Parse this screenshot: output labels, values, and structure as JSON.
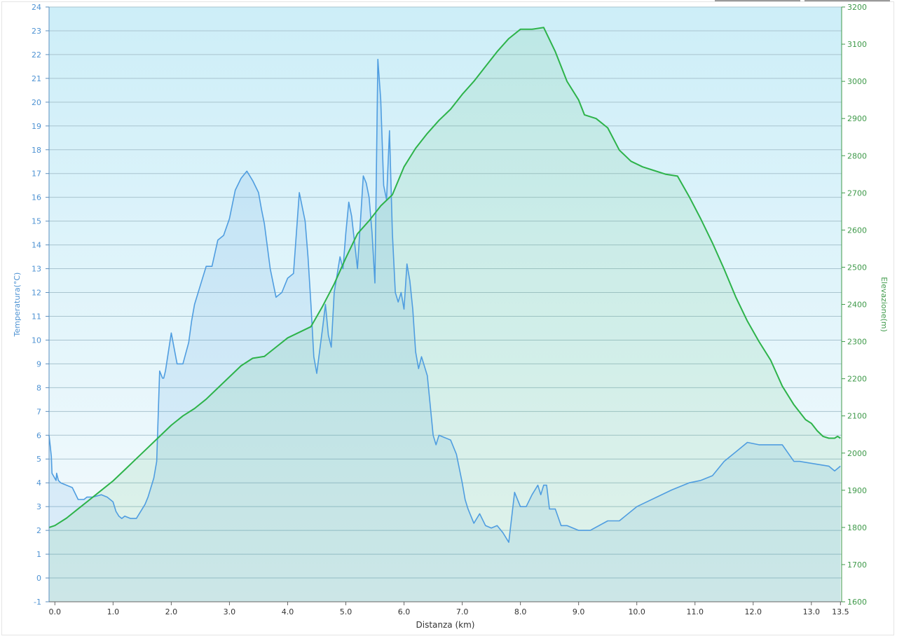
{
  "chart_data": {
    "type": "area",
    "xlabel": "Distanza  (km)",
    "x_ticks": [
      "0.0",
      "1.0",
      "2.0",
      "3.0",
      "4.0",
      "5.0",
      "6.0",
      "7.0",
      "8.0",
      "9.0",
      "10.0",
      "11.0",
      "12.0",
      "13.0",
      "13.5"
    ],
    "x_tick_values": [
      0,
      1,
      2,
      3,
      4,
      5,
      6,
      7,
      8,
      9,
      10,
      11,
      12,
      13,
      13.5
    ],
    "xlim": [
      -0.1,
      13.52
    ],
    "y_left": {
      "label": "Temperatura(°C)",
      "ylim": [
        -1,
        24
      ],
      "ticks": [
        "-1",
        "0",
        "1",
        "2",
        "3",
        "4",
        "5",
        "6",
        "7",
        "8",
        "9",
        "10",
        "11",
        "12",
        "13",
        "14",
        "15",
        "16",
        "17",
        "18",
        "19",
        "20",
        "21",
        "22",
        "23",
        "24"
      ]
    },
    "y_right": {
      "label": "Elevazione(m)",
      "ylim": [
        1600,
        3200
      ],
      "ticks": [
        "1600",
        "1700",
        "1800",
        "1900",
        "2000",
        "2100",
        "2200",
        "2300",
        "2400",
        "2500",
        "2600",
        "2700",
        "2800",
        "2900",
        "3000",
        "3100",
        "3200"
      ]
    },
    "grid": true,
    "colors": {
      "temperature": "#4f9de0",
      "elevation": "#2db34a",
      "background_top": "#cdeef8",
      "background_bottom": "#f6fbfd",
      "grid": "#a9c4cf"
    },
    "series": [
      {
        "axis": "left",
        "x": [
          -0.1,
          -0.06,
          -0.05,
          0.02,
          0.03,
          0.06,
          0.1,
          0.2,
          0.3,
          0.4,
          0.5,
          0.55,
          0.65,
          0.8,
          0.9,
          1.0,
          1.05,
          1.1,
          1.15,
          1.2,
          1.3,
          1.4,
          1.5,
          1.55,
          1.6,
          1.7,
          1.75,
          1.8,
          1.85,
          1.87,
          1.9,
          2.0,
          2.1,
          2.2,
          2.3,
          2.35,
          2.4,
          2.5,
          2.6,
          2.7,
          2.8,
          2.9,
          3.0,
          3.1,
          3.2,
          3.3,
          3.4,
          3.5,
          3.55,
          3.6,
          3.7,
          3.8,
          3.9,
          4.0,
          4.1,
          4.2,
          4.3,
          4.35,
          4.4,
          4.45,
          4.5,
          4.6,
          4.65,
          4.7,
          4.75,
          4.8,
          4.9,
          4.95,
          5.0,
          5.05,
          5.1,
          5.2,
          5.3,
          5.35,
          5.4,
          5.45,
          5.5,
          5.55,
          5.6,
          5.65,
          5.7,
          5.75,
          5.8,
          5.85,
          5.9,
          5.95,
          6.0,
          6.05,
          6.1,
          6.15,
          6.2,
          6.25,
          6.3,
          6.4,
          6.5,
          6.55,
          6.6,
          6.7,
          6.8,
          6.9,
          7.0,
          7.05,
          7.1,
          7.2,
          7.3,
          7.4,
          7.5,
          7.6,
          7.7,
          7.8,
          7.9,
          8.0,
          8.1,
          8.2,
          8.3,
          8.35,
          8.4,
          8.45,
          8.5,
          8.6,
          8.7,
          8.8,
          9.0,
          9.2,
          9.5,
          9.7,
          10.0,
          10.6,
          10.9,
          11.1,
          11.3,
          11.5,
          11.7,
          11.9,
          12.1,
          12.5,
          12.7,
          12.8,
          13.3,
          13.4,
          13.5
        ],
        "values": [
          6,
          5.1,
          4.4,
          4.1,
          4.4,
          4.1,
          4.0,
          3.9,
          3.8,
          3.3,
          3.3,
          3.4,
          3.4,
          3.5,
          3.4,
          3.2,
          2.8,
          2.6,
          2.5,
          2.6,
          2.5,
          2.5,
          2.9,
          3.1,
          3.4,
          4.2,
          4.9,
          8.7,
          8.4,
          8.4,
          8.7,
          10.3,
          9.0,
          9.0,
          9.9,
          10.8,
          11.5,
          12.3,
          13.1,
          13.1,
          14.2,
          14.4,
          15.1,
          16.3,
          16.8,
          17.1,
          16.7,
          16.2,
          15.5,
          14.9,
          13.0,
          11.8,
          12.0,
          12.6,
          12.8,
          16.2,
          15.0,
          13.5,
          11.5,
          9.3,
          8.6,
          10.5,
          11.5,
          10.2,
          9.7,
          12.0,
          13.5,
          13.0,
          14.5,
          15.8,
          15.2,
          13.0,
          16.9,
          16.6,
          16.0,
          14.5,
          12.4,
          21.8,
          20.1,
          16.5,
          15.9,
          18.8,
          14.5,
          12.0,
          11.6,
          12.0,
          11.3,
          13.2,
          12.5,
          11.3,
          9.5,
          8.8,
          9.3,
          8.5,
          6.0,
          5.6,
          6.0,
          5.9,
          5.8,
          5.2,
          4.0,
          3.3,
          2.9,
          2.3,
          2.7,
          2.2,
          2.1,
          2.2,
          1.9,
          1.5,
          3.6,
          3.0,
          3.0,
          3.5,
          3.9,
          3.5,
          3.9,
          3.9,
          2.9,
          2.9,
          2.2,
          2.2,
          2.0,
          2.0,
          2.4,
          2.4,
          3.0,
          3.7,
          4.0,
          4.1,
          4.3,
          4.9,
          5.3,
          5.7,
          5.6,
          5.6,
          4.9,
          4.9,
          4.7,
          4.5,
          4.7
        ]
      },
      {
        "axis": "right",
        "x": [
          -0.1,
          0.0,
          0.2,
          0.4,
          0.6,
          0.8,
          1.0,
          1.2,
          1.4,
          1.6,
          1.8,
          2.0,
          2.2,
          2.4,
          2.6,
          2.8,
          3.0,
          3.2,
          3.4,
          3.6,
          3.8,
          4.0,
          4.2,
          4.4,
          4.6,
          4.8,
          5.0,
          5.2,
          5.4,
          5.6,
          5.8,
          6.0,
          6.2,
          6.4,
          6.6,
          6.8,
          7.0,
          7.2,
          7.4,
          7.6,
          7.8,
          8.0,
          8.2,
          8.4,
          8.6,
          8.8,
          9.0,
          9.1,
          9.3,
          9.5,
          9.7,
          9.9,
          10.1,
          10.3,
          10.5,
          10.7,
          10.9,
          11.1,
          11.3,
          11.5,
          11.7,
          11.9,
          12.1,
          12.3,
          12.5,
          12.7,
          12.9,
          13.0,
          13.1,
          13.2,
          13.3,
          13.4,
          13.45,
          13.5
        ],
        "values": [
          1800,
          1805,
          1825,
          1850,
          1875,
          1900,
          1925,
          1955,
          1985,
          2015,
          2045,
          2075,
          2100,
          2120,
          2145,
          2175,
          2205,
          2235,
          2255,
          2260,
          2285,
          2310,
          2325,
          2340,
          2395,
          2455,
          2525,
          2590,
          2625,
          2665,
          2695,
          2770,
          2820,
          2860,
          2895,
          2925,
          2965,
          3000,
          3040,
          3080,
          3115,
          3140,
          3140,
          3145,
          3080,
          3000,
          2950,
          2910,
          2900,
          2875,
          2815,
          2785,
          2770,
          2760,
          2750,
          2745,
          2690,
          2630,
          2565,
          2495,
          2420,
          2355,
          2300,
          2250,
          2180,
          2130,
          2090,
          2080,
          2060,
          2045,
          2040,
          2040,
          2045,
          2040
        ]
      }
    ]
  }
}
